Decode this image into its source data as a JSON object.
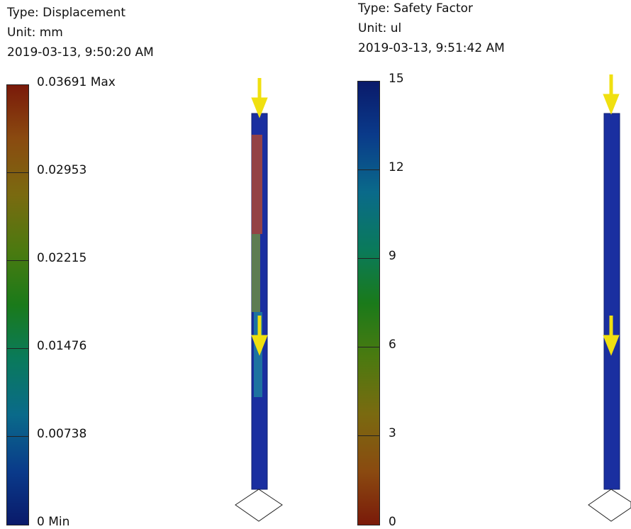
{
  "panels": [
    {
      "type": "Type: Displacement",
      "unit": "Unit: mm",
      "date": "2019-03-13, 9:50:20 AM",
      "legend": [
        "0.03691 Max",
        "0.02953",
        "0.02215",
        "0.01476",
        "0.00738",
        "0 Min"
      ]
    },
    {
      "type": "Type: Safety Factor",
      "unit": "Unit: ul",
      "date": "2019-03-13, 9:51:42 AM",
      "legend": [
        "15",
        "12",
        "9",
        "6",
        "3",
        "0"
      ]
    }
  ]
}
